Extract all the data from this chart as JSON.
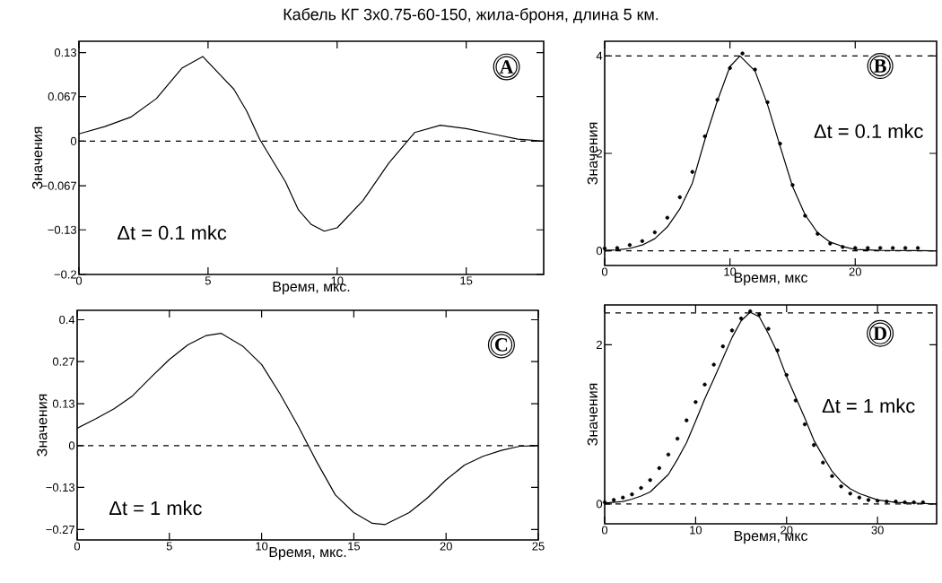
{
  "chart_data": [
    {
      "type": "line",
      "title": "Кабель КГ 3x0.75-60-150, жила-броня, длина 5 км.",
      "xlabel": "Время, мкс.",
      "ylabel": "Значения",
      "annotations": [
        "A",
        "Δt = 0.1 mkc"
      ],
      "xlim": [
        0,
        18
      ],
      "xticks": [
        0,
        5,
        10,
        15
      ],
      "ylim": [
        -0.2,
        0.15
      ],
      "yticks": [
        {
          "value": -0.2,
          "label": "−0.2"
        },
        {
          "value": -0.133,
          "label": "−0.13"
        },
        {
          "value": -0.067,
          "label": "−0.067"
        },
        0,
        {
          "value": 0.067,
          "label": "0.067"
        },
        {
          "value": 0.133,
          "label": "0.13"
        }
      ],
      "ref_lines": [
        {
          "axis": "y",
          "value": 0,
          "color": "#000000",
          "line_style": "dashed"
        }
      ],
      "series": [
        {
          "color": "#000000",
          "marker": "none",
          "x": [
            0,
            1,
            2,
            3,
            4,
            4.8,
            6,
            6.5,
            7,
            8,
            8.5,
            9,
            9.5,
            10,
            11,
            12,
            13,
            14,
            15,
            16,
            17,
            18
          ],
          "values": [
            0.011,
            0.022,
            0.036,
            0.064,
            0.11,
            0.127,
            0.078,
            0.045,
            0.003,
            -0.061,
            -0.103,
            -0.125,
            -0.135,
            -0.13,
            -0.089,
            -0.033,
            0.013,
            0.024,
            0.019,
            0.011,
            0.003,
            0
          ]
        }
      ]
    },
    {
      "type": "line",
      "xlabel": "Время, мкс",
      "ylabel": "Значения",
      "annotations": [
        "B",
        "Δt = 0.1 mkc"
      ],
      "xlim": [
        0,
        26.5
      ],
      "xticks": [
        0,
        10,
        20
      ],
      "ylim": [
        -0.3,
        4.3
      ],
      "yticks": [
        0,
        2,
        4
      ],
      "ref_lines": [
        {
          "axis": "y",
          "value": 0,
          "color": "#000000",
          "line_style": "dashed"
        },
        {
          "axis": "y",
          "value": 4,
          "color": "#000000",
          "line_style": "dashed"
        }
      ],
      "series": [
        {
          "color": "#000000",
          "marker": "none",
          "x": [
            0,
            1,
            2,
            3,
            4,
            5,
            6,
            7,
            8,
            9,
            10,
            10.8,
            12,
            13,
            14,
            15,
            16,
            17,
            18,
            19,
            20,
            22,
            26.5
          ],
          "values": [
            0.01,
            0.02,
            0.05,
            0.12,
            0.25,
            0.49,
            0.86,
            1.39,
            2.28,
            3.08,
            3.78,
            4.0,
            3.69,
            3.0,
            2.15,
            1.32,
            0.74,
            0.37,
            0.18,
            0.09,
            0.03,
            0.01,
            0
          ]
        },
        {
          "type": "scatter",
          "color": "#000000",
          "marker": "circle",
          "x": [
            0,
            1,
            2,
            3,
            4,
            5,
            6,
            7,
            8,
            9,
            10,
            11,
            12,
            13,
            14,
            15,
            16,
            17,
            18,
            19,
            20,
            21,
            22,
            23,
            24,
            25
          ],
          "values": [
            0.05,
            0.06,
            0.12,
            0.2,
            0.38,
            0.68,
            1.1,
            1.62,
            2.35,
            3.1,
            3.75,
            4.05,
            3.72,
            3.05,
            2.2,
            1.35,
            0.72,
            0.35,
            0.15,
            0.08,
            0.06,
            0.06,
            0.06,
            0.06,
            0.06,
            0.06
          ]
        }
      ]
    },
    {
      "type": "line",
      "xlabel": "Время, мкс.",
      "ylabel": "Значения",
      "annotations": [
        "C",
        "Δt = 1 mkc"
      ],
      "xlim": [
        0,
        25
      ],
      "xticks": [
        0,
        5,
        10,
        15,
        20,
        25
      ],
      "ylim": [
        -0.3,
        0.43
      ],
      "yticks": [
        {
          "value": -0.267,
          "label": "−0.27"
        },
        {
          "value": -0.133,
          "label": "−0.13"
        },
        0,
        {
          "value": 0.133,
          "label": "0.13"
        },
        {
          "value": 0.267,
          "label": "0.27"
        },
        0.4
      ],
      "ref_lines": [
        {
          "axis": "y",
          "value": 0,
          "color": "#000000",
          "line_style": "dashed"
        }
      ],
      "series": [
        {
          "color": "#000000",
          "marker": "none",
          "x": [
            0,
            1,
            2,
            3,
            4,
            5,
            6,
            7,
            7.8,
            9,
            10,
            11,
            12,
            13,
            14,
            15,
            16,
            16.7,
            18,
            19,
            20,
            21,
            22,
            23,
            24,
            25
          ],
          "values": [
            0.055,
            0.085,
            0.117,
            0.158,
            0.217,
            0.274,
            0.32,
            0.35,
            0.357,
            0.315,
            0.258,
            0.164,
            0.06,
            -0.053,
            -0.157,
            -0.213,
            -0.247,
            -0.251,
            -0.213,
            -0.166,
            -0.109,
            -0.062,
            -0.034,
            -0.015,
            -0.002,
            0
          ]
        }
      ]
    },
    {
      "type": "line",
      "xlabel": "Время, мкс",
      "ylabel": "Значения",
      "annotations": [
        "D",
        "Δt = 1 mkc"
      ],
      "xlim": [
        0,
        36.5
      ],
      "xticks": [
        0,
        10,
        20,
        30
      ],
      "ylim": [
        -0.25,
        2.5
      ],
      "yticks": [
        0,
        2
      ],
      "ref_lines": [
        {
          "axis": "y",
          "value": 0,
          "color": "#000000",
          "line_style": "dashed"
        },
        {
          "axis": "y",
          "value": 2.4,
          "color": "#000000",
          "line_style": "dashed"
        }
      ],
      "series": [
        {
          "color": "#000000",
          "marker": "none",
          "x": [
            0,
            2,
            3,
            4,
            5,
            7,
            8,
            9,
            10,
            11,
            12,
            13,
            14,
            15,
            16,
            17,
            18,
            19,
            20,
            21,
            22,
            23,
            24,
            25,
            26,
            27,
            28,
            30,
            32,
            36.5
          ],
          "values": [
            0.01,
            0.03,
            0.06,
            0.1,
            0.15,
            0.37,
            0.56,
            0.77,
            1.04,
            1.32,
            1.57,
            1.83,
            2.09,
            2.3,
            2.41,
            2.35,
            2.14,
            1.9,
            1.6,
            1.34,
            1.08,
            0.8,
            0.6,
            0.41,
            0.28,
            0.19,
            0.13,
            0.05,
            0.02,
            0
          ]
        },
        {
          "type": "scatter",
          "color": "#000000",
          "marker": "circle",
          "x": [
            0,
            1,
            2,
            3,
            4,
            5,
            6,
            7,
            8,
            9,
            10,
            11,
            12,
            13,
            14,
            15,
            16,
            17,
            18,
            19,
            20,
            21,
            22,
            23,
            24,
            25,
            26,
            27,
            28,
            29,
            30,
            31,
            32,
            33,
            34,
            35
          ],
          "values": [
            0.02,
            0.05,
            0.08,
            0.12,
            0.2,
            0.3,
            0.45,
            0.62,
            0.82,
            1.05,
            1.28,
            1.5,
            1.75,
            1.98,
            2.18,
            2.33,
            2.42,
            2.38,
            2.2,
            1.93,
            1.62,
            1.3,
            1.0,
            0.74,
            0.52,
            0.35,
            0.22,
            0.13,
            0.08,
            0.05,
            0.04,
            0.03,
            0.03,
            0.02,
            0.02,
            0.02
          ]
        }
      ]
    }
  ]
}
